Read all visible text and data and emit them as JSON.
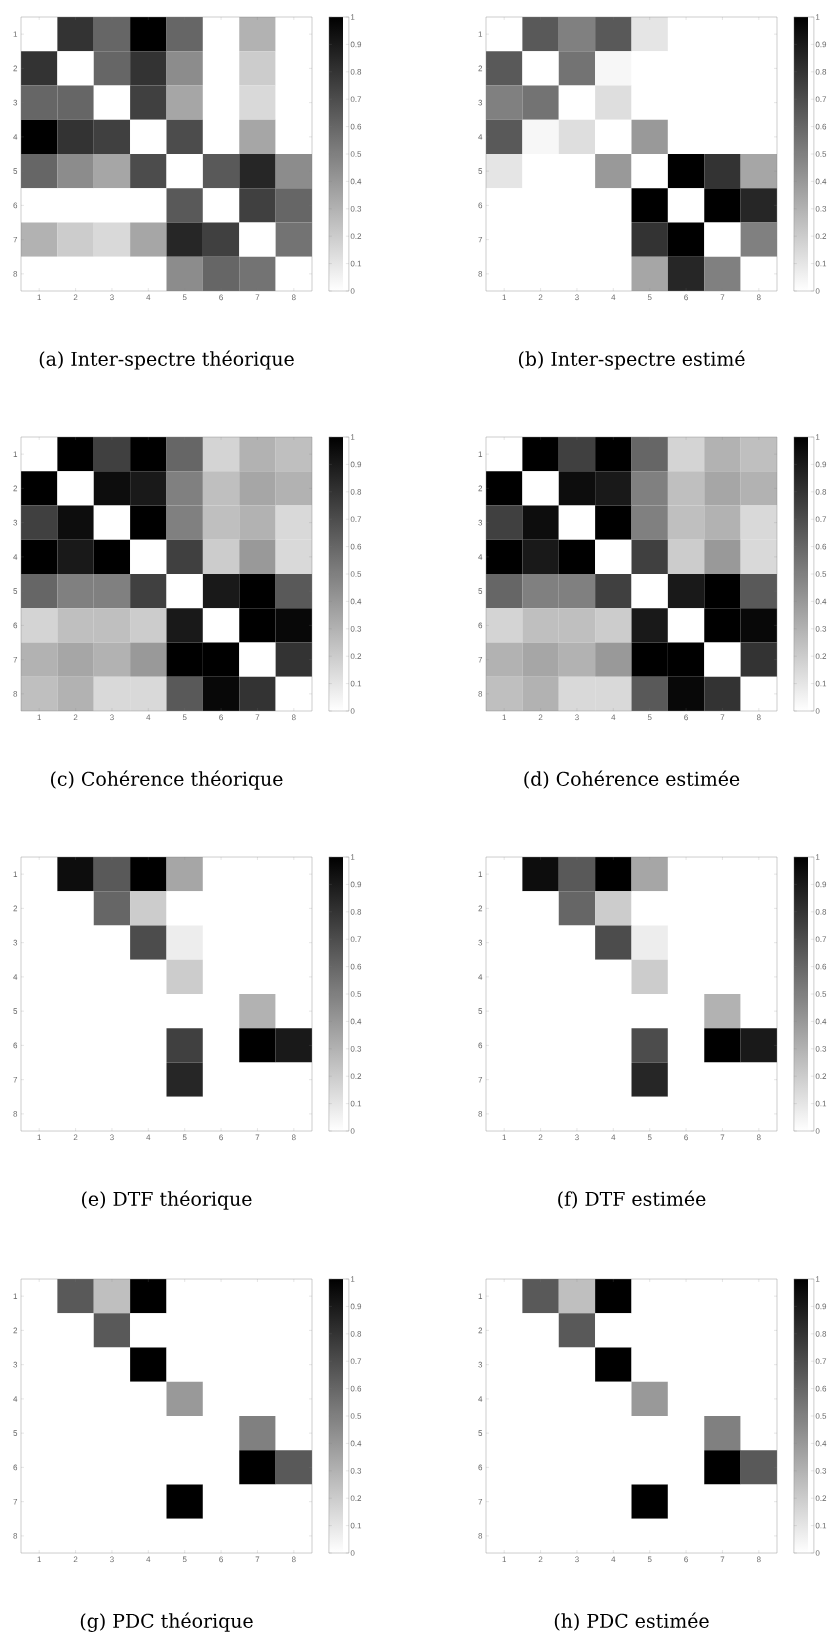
{
  "chart_data": [
    {
      "type": "heatmap",
      "title": "(a)  Inter-spectre théorique",
      "categories": [
        "1",
        "2",
        "3",
        "4",
        "5",
        "6",
        "7",
        "8"
      ],
      "y_categories": [
        "1",
        "2",
        "3",
        "4",
        "5",
        "6",
        "7",
        "8"
      ],
      "cells": [
        [
          0,
          0.8,
          0.6,
          1.0,
          0.6,
          0,
          0.3,
          0
        ],
        [
          0.8,
          0,
          0.6,
          0.8,
          0.45,
          0,
          0.2,
          0
        ],
        [
          0.6,
          0.6,
          0,
          0.75,
          0.35,
          0,
          0.15,
          0
        ],
        [
          1.0,
          0.8,
          0.75,
          0,
          0.7,
          0,
          0.35,
          0
        ],
        [
          0.6,
          0.45,
          0.35,
          0.7,
          0,
          0.65,
          0.85,
          0.45
        ],
        [
          0,
          0,
          0,
          0,
          0.65,
          0,
          0.75,
          0.6
        ],
        [
          0.3,
          0.2,
          0.15,
          0.35,
          0.85,
          0.75,
          0,
          0.55
        ],
        [
          0,
          0,
          0,
          0,
          0.45,
          0.6,
          0.55,
          0
        ]
      ],
      "clim": [
        0,
        1
      ],
      "cticks": [
        0,
        0.1,
        0.2,
        0.3,
        0.4,
        0.5,
        0.6,
        0.7,
        0.8,
        0.9,
        1
      ]
    },
    {
      "type": "heatmap",
      "title": "(b)  Inter-spectre estimé",
      "categories": [
        "1",
        "2",
        "3",
        "4",
        "5",
        "6",
        "7",
        "8"
      ],
      "y_categories": [
        "1",
        "2",
        "3",
        "4",
        "5",
        "6",
        "7",
        "8"
      ],
      "cells": [
        [
          0,
          0.65,
          0.5,
          0.65,
          0.1,
          0,
          0,
          0
        ],
        [
          0.65,
          0,
          0.55,
          0.03,
          0,
          0,
          0,
          0
        ],
        [
          0.5,
          0.55,
          0,
          0.13,
          0,
          0,
          0,
          0
        ],
        [
          0.65,
          0.03,
          0.13,
          0,
          0.4,
          0,
          0,
          0
        ],
        [
          0.1,
          0,
          0,
          0.4,
          0,
          1.0,
          0.8,
          0.35
        ],
        [
          0,
          0,
          0,
          0,
          1.0,
          0,
          1.0,
          0.85
        ],
        [
          0,
          0,
          0,
          0,
          0.8,
          1.0,
          0,
          0.5
        ],
        [
          0,
          0,
          0,
          0,
          0.35,
          0.85,
          0.5,
          0
        ]
      ],
      "clim": [
        0,
        1
      ],
      "cticks": [
        0,
        0.1,
        0.2,
        0.3,
        0.4,
        0.5,
        0.6,
        0.7,
        0.8,
        0.9,
        1
      ]
    },
    {
      "type": "heatmap",
      "title": "(c)  Cohérence théorique",
      "categories": [
        "1",
        "2",
        "3",
        "4",
        "5",
        "6",
        "7",
        "8"
      ],
      "y_categories": [
        "1",
        "2",
        "3",
        "4",
        "5",
        "6",
        "7",
        "8"
      ],
      "cells": [
        [
          0,
          1.0,
          0.75,
          1.0,
          0.6,
          0.17,
          0.3,
          0.25
        ],
        [
          1.0,
          0,
          0.95,
          0.9,
          0.5,
          0.25,
          0.35,
          0.3
        ],
        [
          0.75,
          0.95,
          0,
          1.0,
          0.5,
          0.25,
          0.3,
          0.15
        ],
        [
          1.0,
          0.9,
          1.0,
          0,
          0.75,
          0.2,
          0.4,
          0.15
        ],
        [
          0.6,
          0.5,
          0.5,
          0.75,
          0,
          0.9,
          1.0,
          0.65
        ],
        [
          0.17,
          0.25,
          0.25,
          0.2,
          0.9,
          0,
          1.0,
          0.97
        ],
        [
          0.3,
          0.35,
          0.3,
          0.4,
          1.0,
          1.0,
          0,
          0.8
        ],
        [
          0.25,
          0.3,
          0.15,
          0.15,
          0.65,
          0.97,
          0.8,
          0
        ]
      ],
      "clim": [
        0,
        1
      ],
      "cticks": [
        0,
        0.1,
        0.2,
        0.3,
        0.4,
        0.5,
        0.6,
        0.7,
        0.8,
        0.9,
        1
      ]
    },
    {
      "type": "heatmap",
      "title": "(d)  Cohérence estimée",
      "categories": [
        "1",
        "2",
        "3",
        "4",
        "5",
        "6",
        "7",
        "8"
      ],
      "y_categories": [
        "1",
        "2",
        "3",
        "4",
        "5",
        "6",
        "7",
        "8"
      ],
      "cells": [
        [
          0,
          1.0,
          0.75,
          1.0,
          0.6,
          0.17,
          0.3,
          0.25
        ],
        [
          1.0,
          0,
          0.95,
          0.9,
          0.5,
          0.25,
          0.35,
          0.3
        ],
        [
          0.75,
          0.95,
          0,
          1.0,
          0.5,
          0.25,
          0.3,
          0.15
        ],
        [
          1.0,
          0.9,
          1.0,
          0,
          0.75,
          0.2,
          0.4,
          0.15
        ],
        [
          0.6,
          0.5,
          0.5,
          0.75,
          0,
          0.9,
          1.0,
          0.65
        ],
        [
          0.17,
          0.25,
          0.25,
          0.2,
          0.9,
          0,
          1.0,
          0.97
        ],
        [
          0.3,
          0.35,
          0.3,
          0.4,
          1.0,
          1.0,
          0,
          0.8
        ],
        [
          0.25,
          0.3,
          0.15,
          0.15,
          0.65,
          0.97,
          0.8,
          0
        ]
      ],
      "clim": [
        0,
        1
      ],
      "cticks": [
        0,
        0.1,
        0.2,
        0.3,
        0.4,
        0.5,
        0.6,
        0.7,
        0.8,
        0.9,
        1
      ]
    },
    {
      "type": "heatmap",
      "title": "(e)  DTF théorique",
      "categories": [
        "1",
        "2",
        "3",
        "4",
        "5",
        "6",
        "7",
        "8"
      ],
      "y_categories": [
        "1",
        "2",
        "3",
        "4",
        "5",
        "6",
        "7",
        "8"
      ],
      "cells": [
        [
          0,
          0.95,
          0.65,
          1.0,
          0.35,
          0,
          0,
          0
        ],
        [
          0,
          0,
          0.6,
          0.2,
          0,
          0,
          0,
          0
        ],
        [
          0,
          0,
          0,
          0.7,
          0.07,
          0,
          0,
          0
        ],
        [
          0,
          0,
          0,
          0,
          0.2,
          0,
          0,
          0
        ],
        [
          0,
          0,
          0,
          0,
          0,
          0,
          0.3,
          0
        ],
        [
          0,
          0,
          0,
          0,
          0.75,
          0,
          1.0,
          0.9
        ],
        [
          0,
          0,
          0,
          0,
          0.85,
          0,
          0,
          0
        ],
        [
          0,
          0,
          0,
          0,
          0,
          0,
          0,
          0
        ]
      ],
      "clim": [
        0,
        1
      ],
      "cticks": [
        0,
        0.1,
        0.2,
        0.3,
        0.4,
        0.5,
        0.6,
        0.7,
        0.8,
        0.9,
        1
      ]
    },
    {
      "type": "heatmap",
      "title": "(f)  DTF estimée",
      "categories": [
        "1",
        "2",
        "3",
        "4",
        "5",
        "6",
        "7",
        "8"
      ],
      "y_categories": [
        "1",
        "2",
        "3",
        "4",
        "5",
        "6",
        "7",
        "8"
      ],
      "cells": [
        [
          0,
          0.95,
          0.65,
          1.0,
          0.35,
          0,
          0,
          0
        ],
        [
          0,
          0,
          0.6,
          0.2,
          0,
          0,
          0,
          0
        ],
        [
          0,
          0,
          0,
          0.7,
          0.07,
          0,
          0,
          0
        ],
        [
          0,
          0,
          0,
          0,
          0.2,
          0,
          0,
          0
        ],
        [
          0,
          0,
          0,
          0,
          0,
          0,
          0.3,
          0
        ],
        [
          0,
          0,
          0,
          0,
          0.7,
          0,
          1.0,
          0.9
        ],
        [
          0,
          0,
          0,
          0,
          0.85,
          0,
          0,
          0
        ],
        [
          0,
          0,
          0,
          0,
          0,
          0,
          0,
          0
        ]
      ],
      "clim": [
        0,
        1
      ],
      "cticks": [
        0,
        0.1,
        0.2,
        0.3,
        0.4,
        0.5,
        0.6,
        0.7,
        0.8,
        0.9,
        1
      ]
    },
    {
      "type": "heatmap",
      "title": "(g)  PDC théorique",
      "categories": [
        "1",
        "2",
        "3",
        "4",
        "5",
        "6",
        "7",
        "8"
      ],
      "y_categories": [
        "1",
        "2",
        "3",
        "4",
        "5",
        "6",
        "7",
        "8"
      ],
      "cells": [
        [
          0,
          0.65,
          0.25,
          1.0,
          0,
          0,
          0,
          0
        ],
        [
          0,
          0,
          0.65,
          0,
          0,
          0,
          0,
          0
        ],
        [
          0,
          0,
          0,
          1.0,
          0,
          0,
          0,
          0
        ],
        [
          0,
          0,
          0,
          0,
          0.4,
          0,
          0,
          0
        ],
        [
          0,
          0,
          0,
          0,
          0,
          0,
          0.5,
          0
        ],
        [
          0,
          0,
          0,
          0,
          0,
          0,
          1.0,
          0.65
        ],
        [
          0,
          0,
          0,
          0,
          1.0,
          0,
          0,
          0
        ],
        [
          0,
          0,
          0,
          0,
          0,
          0,
          0,
          0
        ]
      ],
      "clim": [
        0,
        1
      ],
      "cticks": [
        0,
        0.1,
        0.2,
        0.3,
        0.4,
        0.5,
        0.6,
        0.7,
        0.8,
        0.9,
        1
      ]
    },
    {
      "type": "heatmap",
      "title": "(h)  PDC estimée",
      "categories": [
        "1",
        "2",
        "3",
        "4",
        "5",
        "6",
        "7",
        "8"
      ],
      "y_categories": [
        "1",
        "2",
        "3",
        "4",
        "5",
        "6",
        "7",
        "8"
      ],
      "cells": [
        [
          0,
          0.65,
          0.25,
          1.0,
          0,
          0,
          0,
          0
        ],
        [
          0,
          0,
          0.65,
          0,
          0,
          0,
          0,
          0
        ],
        [
          0,
          0,
          0,
          1.0,
          0,
          0,
          0,
          0
        ],
        [
          0,
          0,
          0,
          0,
          0.4,
          0,
          0,
          0
        ],
        [
          0,
          0,
          0,
          0,
          0,
          0,
          0.5,
          0
        ],
        [
          0,
          0,
          0,
          0,
          0,
          0,
          1.0,
          0.65
        ],
        [
          0,
          0,
          0,
          0,
          1.0,
          0,
          0,
          0
        ],
        [
          0,
          0,
          0,
          0,
          0,
          0,
          0,
          0
        ]
      ],
      "clim": [
        0,
        1
      ],
      "cticks": [
        0,
        0.1,
        0.2,
        0.3,
        0.4,
        0.5,
        0.6,
        0.7,
        0.8,
        0.9,
        1
      ]
    }
  ]
}
